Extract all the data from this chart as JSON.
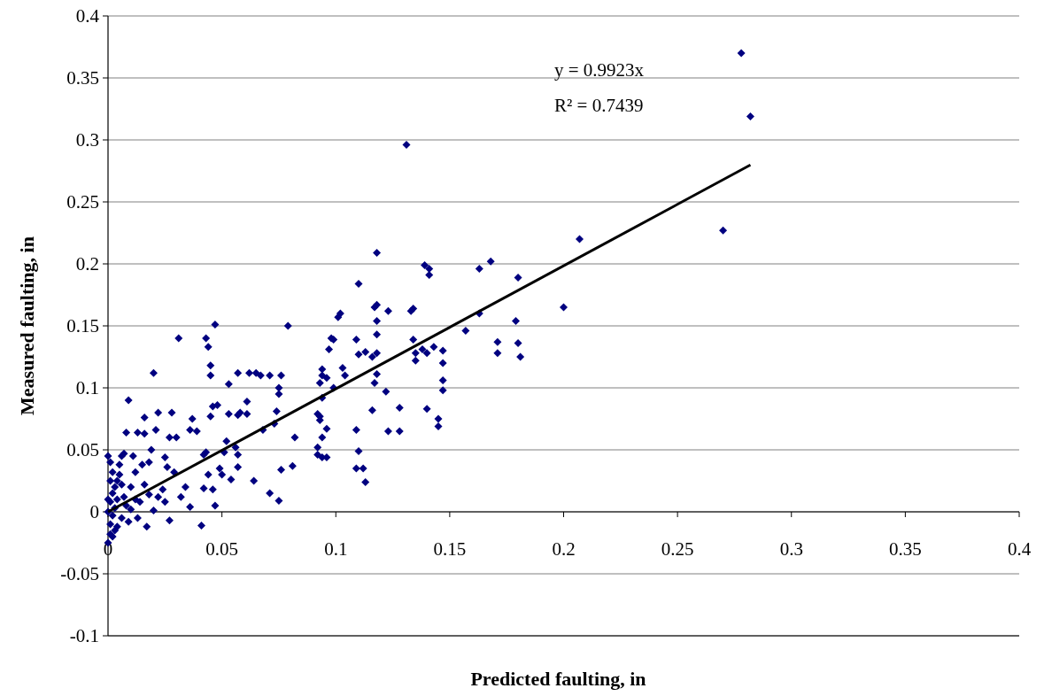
{
  "chart_data": {
    "type": "scatter",
    "xlabel": "Predicted faulting, in",
    "ylabel": "Measured faulting, in",
    "annotations": [
      "y = 0.9923x",
      "R² = 0.7439"
    ],
    "xlim": [
      0,
      0.4
    ],
    "xticks": [
      0,
      0.05,
      0.1,
      0.15,
      0.2,
      0.25,
      0.3,
      0.35,
      0.4
    ],
    "ylim": [
      -0.1,
      0.4
    ],
    "yticks": [
      -0.1,
      -0.05,
      0,
      0.05,
      0.1,
      0.15,
      0.2,
      0.25,
      0.3,
      0.35,
      0.4
    ],
    "grid": "y",
    "series": [
      {
        "color": "#000080",
        "marker": "diamond",
        "x": [
          0.278,
          0.282,
          0.27,
          0.207,
          0.2,
          0.18,
          0.179,
          0.18,
          0.181,
          0.171,
          0.171,
          0.168,
          0.163,
          0.163,
          0.157,
          0.131,
          0.118,
          0.147,
          0.147,
          0.147,
          0.147,
          0.145,
          0.145,
          0.14,
          0.139,
          0.141,
          0.141,
          0.143,
          0.14,
          0.138,
          0.134,
          0.133,
          0.134,
          0.135,
          0.135,
          0.128,
          0.128,
          0.123,
          0.122,
          0.123,
          0.117,
          0.118,
          0.118,
          0.118,
          0.118,
          0.116,
          0.118,
          0.117,
          0.116,
          0.11,
          0.109,
          0.11,
          0.113,
          0.112,
          0.113,
          0.11,
          0.109,
          0.109,
          0.103,
          0.104,
          0.101,
          0.102,
          0.098,
          0.097,
          0.099,
          0.099,
          0.096,
          0.094,
          0.094,
          0.093,
          0.094,
          0.093,
          0.093,
          0.092,
          0.096,
          0.094,
          0.092,
          0.092,
          0.094,
          0.096,
          0.079,
          0.082,
          0.081,
          0.076,
          0.075,
          0.075,
          0.074,
          0.076,
          0.075,
          0.073,
          0.071,
          0.071,
          0.068,
          0.067,
          0.065,
          0.064,
          0.062,
          0.061,
          0.061,
          0.057,
          0.058,
          0.057,
          0.057,
          0.057,
          0.056,
          0.054,
          0.053,
          0.053,
          0.052,
          0.051,
          0.05,
          0.049,
          0.047,
          0.048,
          0.046,
          0.045,
          0.045,
          0.044,
          0.043,
          0.045,
          0.043,
          0.042,
          0.044,
          0.046,
          0.047,
          0.042,
          0.041,
          0.039,
          0.037,
          0.036,
          0.034,
          0.031,
          0.03,
          0.028,
          0.027,
          0.026,
          0.025,
          0.024,
          0.025,
          0.022,
          0.021,
          0.02,
          0.019,
          0.018,
          0.016,
          0.016,
          0.015,
          0.013,
          0.012,
          0.011,
          0.01,
          0.009,
          0.008,
          0.007,
          0.006,
          0.029,
          0.032,
          0.036,
          0.027,
          0.02,
          0.017,
          0.013,
          0,
          0.001,
          0.002,
          0.001,
          0.003,
          0.002,
          0.004,
          0.001,
          0.003,
          0.002,
          0.001,
          0.003,
          0.002,
          0,
          0.004,
          0.005,
          0.006,
          0.007,
          0.008,
          0.01,
          0.006,
          0.009,
          0.012,
          0.014,
          0.005,
          0.004,
          0,
          0,
          0.001,
          0.018,
          0.016,
          0.022
        ],
        "values": [
          0.37,
          0.319,
          0.227,
          0.22,
          0.165,
          0.189,
          0.154,
          0.136,
          0.125,
          0.137,
          0.128,
          0.202,
          0.196,
          0.16,
          0.146,
          0.296,
          0.209,
          0.13,
          0.12,
          0.106,
          0.098,
          0.075,
          0.069,
          0.083,
          0.199,
          0.196,
          0.191,
          0.133,
          0.128,
          0.131,
          0.139,
          0.162,
          0.164,
          0.128,
          0.122,
          0.065,
          0.084,
          0.065,
          0.097,
          0.162,
          0.165,
          0.167,
          0.154,
          0.143,
          0.128,
          0.125,
          0.111,
          0.104,
          0.082,
          0.184,
          0.139,
          0.127,
          0.129,
          0.035,
          0.024,
          0.049,
          0.066,
          0.035,
          0.116,
          0.11,
          0.157,
          0.16,
          0.14,
          0.131,
          0.139,
          0.1,
          0.108,
          0.115,
          0.11,
          0.104,
          0.092,
          0.077,
          0.074,
          0.079,
          0.067,
          0.06,
          0.052,
          0.046,
          0.044,
          0.044,
          0.15,
          0.06,
          0.037,
          0.11,
          0.1,
          0.095,
          0.081,
          0.034,
          0.009,
          0.071,
          0.11,
          0.015,
          0.066,
          0.11,
          0.112,
          0.025,
          0.112,
          0.089,
          0.079,
          0.112,
          0.08,
          0.078,
          0.046,
          0.036,
          0.052,
          0.026,
          0.103,
          0.079,
          0.057,
          0.048,
          0.03,
          0.035,
          0.151,
          0.086,
          0.085,
          0.118,
          0.11,
          0.133,
          0.14,
          0.077,
          0.048,
          0.046,
          0.03,
          0.018,
          0.005,
          0.019,
          -0.011,
          0.065,
          0.075,
          0.066,
          0.02,
          0.14,
          0.06,
          0.08,
          0.06,
          0.036,
          0.044,
          0.018,
          0.008,
          0.08,
          0.066,
          0.112,
          0.05,
          0.04,
          0.076,
          0.063,
          0.038,
          0.064,
          0.032,
          0.045,
          0.02,
          0.09,
          0.064,
          0.047,
          0.045,
          0.032,
          0.012,
          0.004,
          -0.007,
          0.001,
          -0.012,
          -0.005,
          0.045,
          0.04,
          0.032,
          0.025,
          0.02,
          0.015,
          0.01,
          0.008,
          0.003,
          -0.003,
          -0.01,
          -0.015,
          -0.02,
          -0.025,
          -0.012,
          0.03,
          0.022,
          0.012,
          0.005,
          0.002,
          -0.005,
          -0.008,
          0.01,
          0.008,
          0.038,
          0.025,
          0.01,
          0,
          -0.018,
          0.014,
          0.022,
          0.012
        ]
      },
      {
        "type": "line",
        "color": "#000000",
        "marker": "none",
        "line_style": "solid",
        "x": [
          0,
          0.282
        ],
        "values": [
          0,
          0.2798
        ]
      }
    ]
  }
}
